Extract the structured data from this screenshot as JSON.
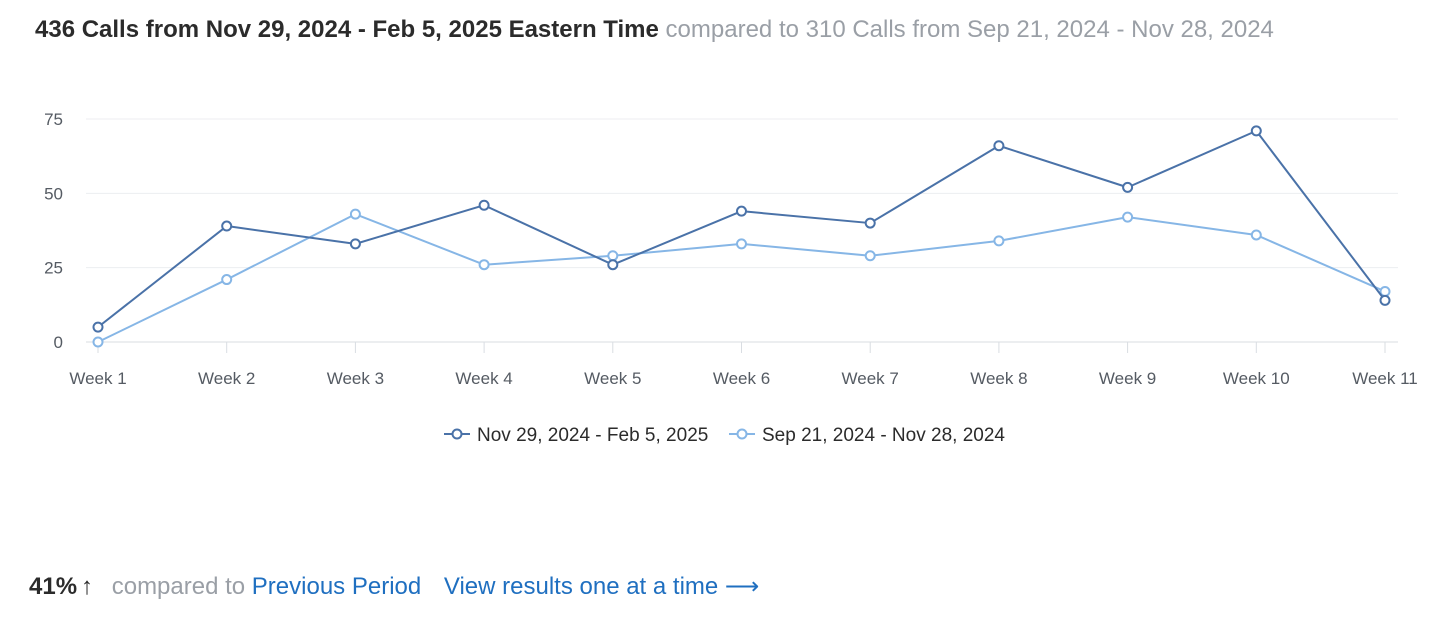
{
  "header": {
    "main": "436 Calls from Nov 29, 2024 - Feb 5, 2025 Eastern Time",
    "compare": "compared to 310 Calls from Sep 21, 2024 - Nov 28, 2024"
  },
  "chart_data": {
    "type": "line",
    "categories": [
      "Week 1",
      "Week 2",
      "Week 3",
      "Week 4",
      "Week 5",
      "Week 6",
      "Week 7",
      "Week 8",
      "Week 9",
      "Week 10",
      "Week 11"
    ],
    "series": [
      {
        "name": "Nov 29, 2024 - Feb 5, 2025",
        "color": "#4a72a8",
        "values": [
          5,
          39,
          33,
          46,
          26,
          44,
          40,
          66,
          52,
          71,
          14
        ]
      },
      {
        "name": "Sep 21, 2024 - Nov 28, 2024",
        "color": "#86b6e6",
        "values": [
          0,
          21,
          43,
          26,
          29,
          33,
          29,
          34,
          42,
          36,
          17
        ]
      }
    ],
    "yticks": [
      0,
      25,
      50,
      75
    ],
    "ylim": [
      0,
      75
    ],
    "grid": true,
    "legend_position": "bottom-center"
  },
  "footer": {
    "percent": "41%",
    "arrow": "↑",
    "compared_to": "compared to",
    "previous_link": "Previous Period",
    "view_link": "View results one at a time",
    "view_arrow": "⟶"
  }
}
